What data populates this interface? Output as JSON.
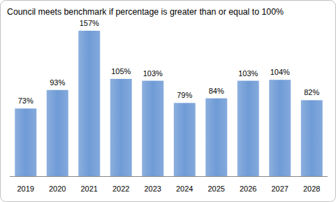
{
  "chart_data": {
    "type": "bar",
    "title": "Council meets benchmark if percentage is greater than or equal to 100%",
    "categories": [
      "2019",
      "2020",
      "2021",
      "2022",
      "2023",
      "2024",
      "2025",
      "2026",
      "2027",
      "2028"
    ],
    "values": [
      73,
      93,
      157,
      105,
      103,
      79,
      84,
      103,
      104,
      82
    ],
    "value_labels": [
      "73%",
      "93%",
      "157%",
      "105%",
      "103%",
      "79%",
      "84%",
      "103%",
      "104%",
      "82%"
    ],
    "color": "#6f9bd6",
    "ylim": [
      0,
      160
    ],
    "grid": false,
    "data_labels": true,
    "tick_labels": "x"
  }
}
